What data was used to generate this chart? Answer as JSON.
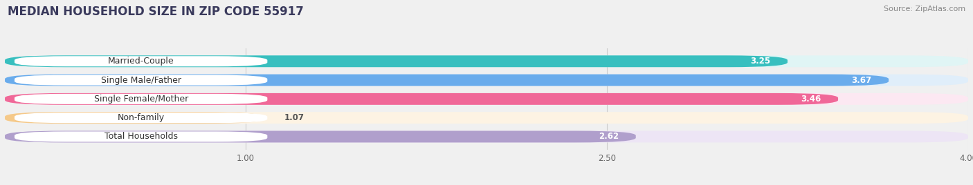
{
  "title": "MEDIAN HOUSEHOLD SIZE IN ZIP CODE 55917",
  "source": "Source: ZipAtlas.com",
  "categories": [
    "Married-Couple",
    "Single Male/Father",
    "Single Female/Mother",
    "Non-family",
    "Total Households"
  ],
  "values": [
    3.25,
    3.67,
    3.46,
    1.07,
    2.62
  ],
  "bar_colors": [
    "#38bfbf",
    "#6aacec",
    "#f06898",
    "#f5c98a",
    "#b09fcc"
  ],
  "bar_bg_colors": [
    "#e0f5f5",
    "#e0eefa",
    "#fce8f2",
    "#fdf3e3",
    "#ede5f5"
  ],
  "label_bg_color": "#ffffff",
  "xlim": [
    0.0,
    4.0
  ],
  "xticks": [
    1.0,
    2.5,
    4.0
  ],
  "title_fontsize": 12,
  "source_fontsize": 8,
  "label_fontsize": 9,
  "value_fontsize": 8.5,
  "bg_color": "#f0f0f0",
  "bar_height": 0.62,
  "bar_gap": 0.38
}
